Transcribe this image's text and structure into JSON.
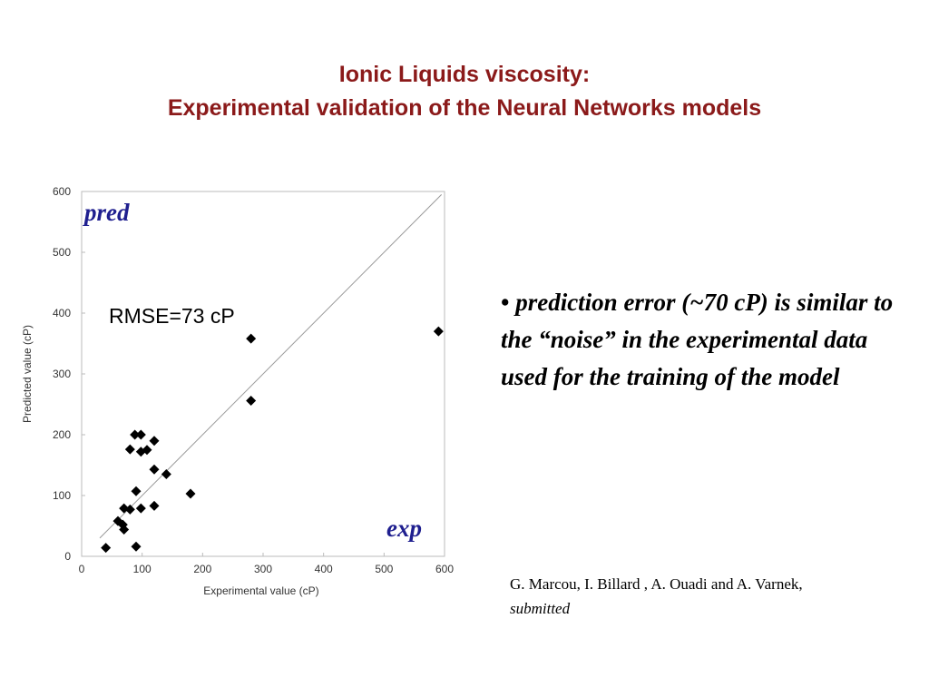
{
  "colors": {
    "title": "#8b1a1a",
    "annotation": "#1f1f8f",
    "marker": "#000000",
    "diagonal": "#999999",
    "axes": "#bbbbbb"
  },
  "slide": {
    "title_line1": "Ionic Liquids viscosity:",
    "title_line2": "Experimental validation of the Neural Networks models"
  },
  "chart_data": {
    "type": "scatter",
    "xlabel": "Experimental value (cP)",
    "ylabel": "Predicted value (cP)",
    "xlim": [
      0,
      600
    ],
    "ylim": [
      0,
      600
    ],
    "x_ticks": [
      0,
      100,
      200,
      300,
      400,
      500,
      600
    ],
    "y_ticks": [
      0,
      100,
      200,
      300,
      400,
      500,
      600
    ],
    "grid": false,
    "marker": "diamond",
    "reference_line": "y = x",
    "annotations": {
      "pred": "pred",
      "exp": "exp",
      "rmse": "RMSE=73 cP"
    },
    "points": [
      {
        "x": 40,
        "y": 14
      },
      {
        "x": 60,
        "y": 58
      },
      {
        "x": 70,
        "y": 79
      },
      {
        "x": 68,
        "y": 52
      },
      {
        "x": 70,
        "y": 44
      },
      {
        "x": 80,
        "y": 77
      },
      {
        "x": 80,
        "y": 176
      },
      {
        "x": 88,
        "y": 200
      },
      {
        "x": 90,
        "y": 107
      },
      {
        "x": 90,
        "y": 16
      },
      {
        "x": 98,
        "y": 200
      },
      {
        "x": 98,
        "y": 172
      },
      {
        "x": 98,
        "y": 79
      },
      {
        "x": 108,
        "y": 175
      },
      {
        "x": 120,
        "y": 190
      },
      {
        "x": 120,
        "y": 143
      },
      {
        "x": 120,
        "y": 83
      },
      {
        "x": 140,
        "y": 135
      },
      {
        "x": 180,
        "y": 103
      },
      {
        "x": 280,
        "y": 358
      },
      {
        "x": 280,
        "y": 256
      },
      {
        "x": 590,
        "y": 370
      }
    ]
  },
  "bullet": {
    "marker": "•",
    "text": "prediction error (~70 cP) is similar to the “noise” in the experimental data used for the training of the model"
  },
  "citation": {
    "authors": "G. Marcou, I. Billard , A. Ouadi and A. Varnek,",
    "status": "submitted"
  }
}
